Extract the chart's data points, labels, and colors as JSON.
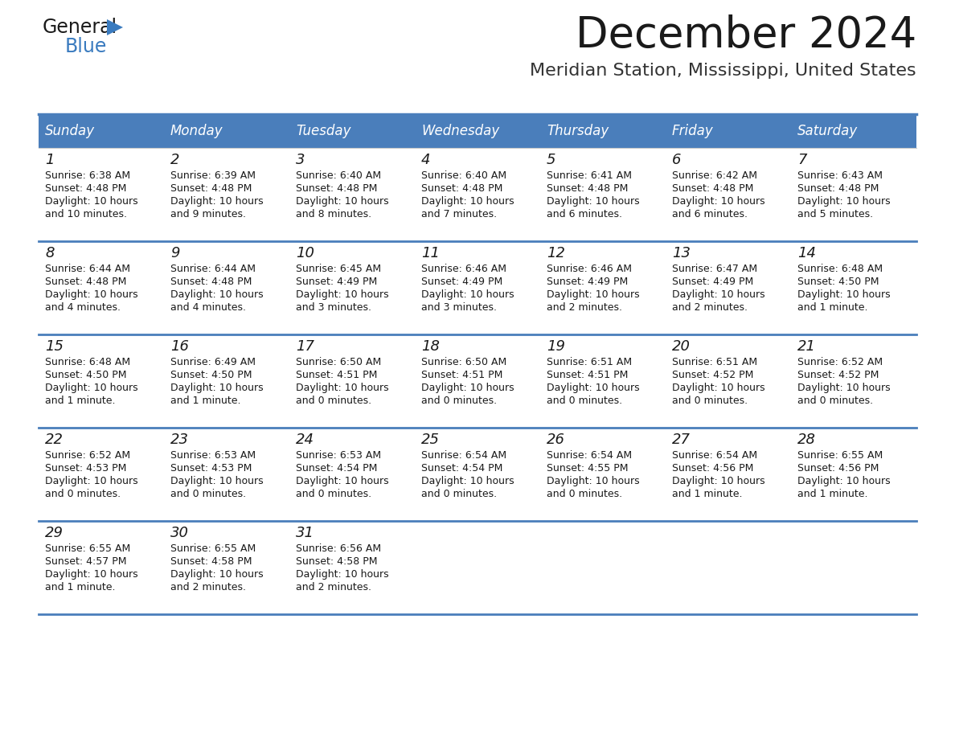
{
  "title": "December 2024",
  "subtitle": "Meridian Station, Mississippi, United States",
  "header_color": "#4A7EBB",
  "header_text_color": "#FFFFFF",
  "background_color": "#FFFFFF",
  "cell_bg_color": "#FFFFFF",
  "row_sep_color": "#4A7EBB",
  "border_color": "#4A7EBB",
  "day_names": [
    "Sunday",
    "Monday",
    "Tuesday",
    "Wednesday",
    "Thursday",
    "Friday",
    "Saturday"
  ],
  "days": [
    {
      "day": 1,
      "col": 0,
      "row": 0,
      "sunrise": "6:38 AM",
      "sunset": "4:48 PM",
      "daylight": "10 hours and 10 minutes."
    },
    {
      "day": 2,
      "col": 1,
      "row": 0,
      "sunrise": "6:39 AM",
      "sunset": "4:48 PM",
      "daylight": "10 hours and 9 minutes."
    },
    {
      "day": 3,
      "col": 2,
      "row": 0,
      "sunrise": "6:40 AM",
      "sunset": "4:48 PM",
      "daylight": "10 hours and 8 minutes."
    },
    {
      "day": 4,
      "col": 3,
      "row": 0,
      "sunrise": "6:40 AM",
      "sunset": "4:48 PM",
      "daylight": "10 hours and 7 minutes."
    },
    {
      "day": 5,
      "col": 4,
      "row": 0,
      "sunrise": "6:41 AM",
      "sunset": "4:48 PM",
      "daylight": "10 hours and 6 minutes."
    },
    {
      "day": 6,
      "col": 5,
      "row": 0,
      "sunrise": "6:42 AM",
      "sunset": "4:48 PM",
      "daylight": "10 hours and 6 minutes."
    },
    {
      "day": 7,
      "col": 6,
      "row": 0,
      "sunrise": "6:43 AM",
      "sunset": "4:48 PM",
      "daylight": "10 hours and 5 minutes."
    },
    {
      "day": 8,
      "col": 0,
      "row": 1,
      "sunrise": "6:44 AM",
      "sunset": "4:48 PM",
      "daylight": "10 hours and 4 minutes."
    },
    {
      "day": 9,
      "col": 1,
      "row": 1,
      "sunrise": "6:44 AM",
      "sunset": "4:48 PM",
      "daylight": "10 hours and 4 minutes."
    },
    {
      "day": 10,
      "col": 2,
      "row": 1,
      "sunrise": "6:45 AM",
      "sunset": "4:49 PM",
      "daylight": "10 hours and 3 minutes."
    },
    {
      "day": 11,
      "col": 3,
      "row": 1,
      "sunrise": "6:46 AM",
      "sunset": "4:49 PM",
      "daylight": "10 hours and 3 minutes."
    },
    {
      "day": 12,
      "col": 4,
      "row": 1,
      "sunrise": "6:46 AM",
      "sunset": "4:49 PM",
      "daylight": "10 hours and 2 minutes."
    },
    {
      "day": 13,
      "col": 5,
      "row": 1,
      "sunrise": "6:47 AM",
      "sunset": "4:49 PM",
      "daylight": "10 hours and 2 minutes."
    },
    {
      "day": 14,
      "col": 6,
      "row": 1,
      "sunrise": "6:48 AM",
      "sunset": "4:50 PM",
      "daylight": "10 hours and 1 minute."
    },
    {
      "day": 15,
      "col": 0,
      "row": 2,
      "sunrise": "6:48 AM",
      "sunset": "4:50 PM",
      "daylight": "10 hours and 1 minute."
    },
    {
      "day": 16,
      "col": 1,
      "row": 2,
      "sunrise": "6:49 AM",
      "sunset": "4:50 PM",
      "daylight": "10 hours and 1 minute."
    },
    {
      "day": 17,
      "col": 2,
      "row": 2,
      "sunrise": "6:50 AM",
      "sunset": "4:51 PM",
      "daylight": "10 hours and 0 minutes."
    },
    {
      "day": 18,
      "col": 3,
      "row": 2,
      "sunrise": "6:50 AM",
      "sunset": "4:51 PM",
      "daylight": "10 hours and 0 minutes."
    },
    {
      "day": 19,
      "col": 4,
      "row": 2,
      "sunrise": "6:51 AM",
      "sunset": "4:51 PM",
      "daylight": "10 hours and 0 minutes."
    },
    {
      "day": 20,
      "col": 5,
      "row": 2,
      "sunrise": "6:51 AM",
      "sunset": "4:52 PM",
      "daylight": "10 hours and 0 minutes."
    },
    {
      "day": 21,
      "col": 6,
      "row": 2,
      "sunrise": "6:52 AM",
      "sunset": "4:52 PM",
      "daylight": "10 hours and 0 minutes."
    },
    {
      "day": 22,
      "col": 0,
      "row": 3,
      "sunrise": "6:52 AM",
      "sunset": "4:53 PM",
      "daylight": "10 hours and 0 minutes."
    },
    {
      "day": 23,
      "col": 1,
      "row": 3,
      "sunrise": "6:53 AM",
      "sunset": "4:53 PM",
      "daylight": "10 hours and 0 minutes."
    },
    {
      "day": 24,
      "col": 2,
      "row": 3,
      "sunrise": "6:53 AM",
      "sunset": "4:54 PM",
      "daylight": "10 hours and 0 minutes."
    },
    {
      "day": 25,
      "col": 3,
      "row": 3,
      "sunrise": "6:54 AM",
      "sunset": "4:54 PM",
      "daylight": "10 hours and 0 minutes."
    },
    {
      "day": 26,
      "col": 4,
      "row": 3,
      "sunrise": "6:54 AM",
      "sunset": "4:55 PM",
      "daylight": "10 hours and 0 minutes."
    },
    {
      "day": 27,
      "col": 5,
      "row": 3,
      "sunrise": "6:54 AM",
      "sunset": "4:56 PM",
      "daylight": "10 hours and 1 minute."
    },
    {
      "day": 28,
      "col": 6,
      "row": 3,
      "sunrise": "6:55 AM",
      "sunset": "4:56 PM",
      "daylight": "10 hours and 1 minute."
    },
    {
      "day": 29,
      "col": 0,
      "row": 4,
      "sunrise": "6:55 AM",
      "sunset": "4:57 PM",
      "daylight": "10 hours and 1 minute."
    },
    {
      "day": 30,
      "col": 1,
      "row": 4,
      "sunrise": "6:55 AM",
      "sunset": "4:58 PM",
      "daylight": "10 hours and 2 minutes."
    },
    {
      "day": 31,
      "col": 2,
      "row": 4,
      "sunrise": "6:56 AM",
      "sunset": "4:58 PM",
      "daylight": "10 hours and 2 minutes."
    }
  ],
  "num_rows": 5,
  "num_cols": 7
}
